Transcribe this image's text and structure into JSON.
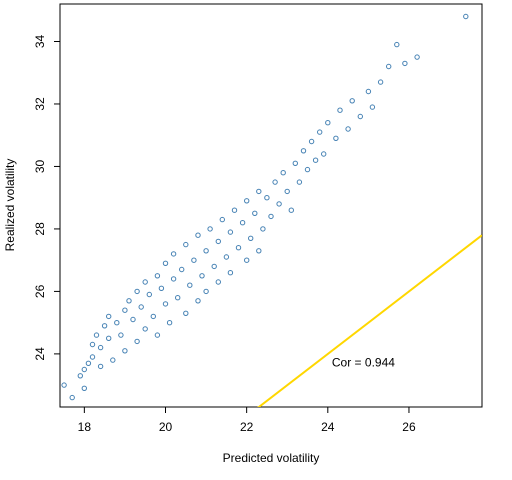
{
  "chart_data": {
    "type": "scatter",
    "title": "",
    "xlabel": "Predicted volatility",
    "ylabel": "Realized volatility",
    "xlim": [
      17.4,
      27.8
    ],
    "ylim": [
      22.3,
      35.2
    ],
    "x_ticks": [
      18,
      20,
      22,
      24,
      26
    ],
    "y_ticks": [
      24,
      26,
      28,
      30,
      32,
      34
    ],
    "grid": false,
    "legend": "none",
    "point_color": "#4682B4",
    "line_color": "#FFD700",
    "annotation": {
      "text": "Cor = 0.944",
      "x": 24.1,
      "y": 23.6
    },
    "reference_line": {
      "name": "y = x",
      "intercept": 0,
      "slope": 1,
      "points": [
        [
          22,
          22
        ],
        [
          27.8,
          27.8
        ]
      ]
    },
    "series": [
      {
        "values": [
          [
            17.5,
            23.0
          ],
          [
            17.7,
            22.6
          ],
          [
            17.9,
            23.3
          ],
          [
            18.0,
            23.5
          ],
          [
            18.0,
            22.9
          ],
          [
            18.1,
            23.7
          ],
          [
            18.2,
            23.9
          ],
          [
            18.2,
            24.3
          ],
          [
            18.3,
            24.6
          ],
          [
            18.4,
            24.2
          ],
          [
            18.4,
            23.6
          ],
          [
            18.5,
            24.9
          ],
          [
            18.6,
            24.5
          ],
          [
            18.6,
            25.2
          ],
          [
            18.7,
            23.8
          ],
          [
            18.8,
            25.0
          ],
          [
            18.9,
            24.6
          ],
          [
            19.0,
            25.4
          ],
          [
            19.0,
            24.1
          ],
          [
            19.1,
            25.7
          ],
          [
            19.2,
            25.1
          ],
          [
            19.3,
            24.4
          ],
          [
            19.3,
            26.0
          ],
          [
            19.4,
            25.5
          ],
          [
            19.5,
            24.8
          ],
          [
            19.5,
            26.3
          ],
          [
            19.6,
            25.9
          ],
          [
            19.7,
            25.2
          ],
          [
            19.8,
            26.5
          ],
          [
            19.8,
            24.6
          ],
          [
            19.9,
            26.1
          ],
          [
            20.0,
            25.6
          ],
          [
            20.0,
            26.9
          ],
          [
            20.1,
            25.0
          ],
          [
            20.2,
            26.4
          ],
          [
            20.2,
            27.2
          ],
          [
            20.3,
            25.8
          ],
          [
            20.4,
            26.7
          ],
          [
            20.5,
            25.3
          ],
          [
            20.5,
            27.5
          ],
          [
            20.6,
            26.2
          ],
          [
            20.7,
            27.0
          ],
          [
            20.8,
            25.7
          ],
          [
            20.8,
            27.8
          ],
          [
            20.9,
            26.5
          ],
          [
            21.0,
            27.3
          ],
          [
            21.0,
            26.0
          ],
          [
            21.1,
            28.0
          ],
          [
            21.2,
            26.8
          ],
          [
            21.3,
            27.6
          ],
          [
            21.3,
            26.3
          ],
          [
            21.4,
            28.3
          ],
          [
            21.5,
            27.1
          ],
          [
            21.6,
            27.9
          ],
          [
            21.6,
            26.6
          ],
          [
            21.7,
            28.6
          ],
          [
            21.8,
            27.4
          ],
          [
            21.9,
            28.2
          ],
          [
            22.0,
            27.0
          ],
          [
            22.0,
            28.9
          ],
          [
            22.1,
            27.7
          ],
          [
            22.2,
            28.5
          ],
          [
            22.3,
            29.2
          ],
          [
            22.3,
            27.3
          ],
          [
            22.4,
            28.0
          ],
          [
            22.5,
            29.0
          ],
          [
            22.6,
            28.4
          ],
          [
            22.7,
            29.5
          ],
          [
            22.8,
            28.8
          ],
          [
            22.9,
            29.8
          ],
          [
            23.0,
            29.2
          ],
          [
            23.1,
            28.6
          ],
          [
            23.2,
            30.1
          ],
          [
            23.3,
            29.5
          ],
          [
            23.4,
            30.5
          ],
          [
            23.5,
            29.9
          ],
          [
            23.6,
            30.8
          ],
          [
            23.7,
            30.2
          ],
          [
            23.8,
            31.1
          ],
          [
            23.9,
            30.4
          ],
          [
            24.0,
            31.4
          ],
          [
            24.2,
            30.9
          ],
          [
            24.3,
            31.8
          ],
          [
            24.5,
            31.2
          ],
          [
            24.6,
            32.1
          ],
          [
            24.8,
            31.6
          ],
          [
            25.0,
            32.4
          ],
          [
            25.1,
            31.9
          ],
          [
            25.3,
            32.7
          ],
          [
            25.5,
            33.2
          ],
          [
            25.7,
            33.9
          ],
          [
            25.9,
            33.3
          ],
          [
            26.2,
            33.5
          ],
          [
            27.4,
            34.8
          ]
        ]
      }
    ]
  }
}
